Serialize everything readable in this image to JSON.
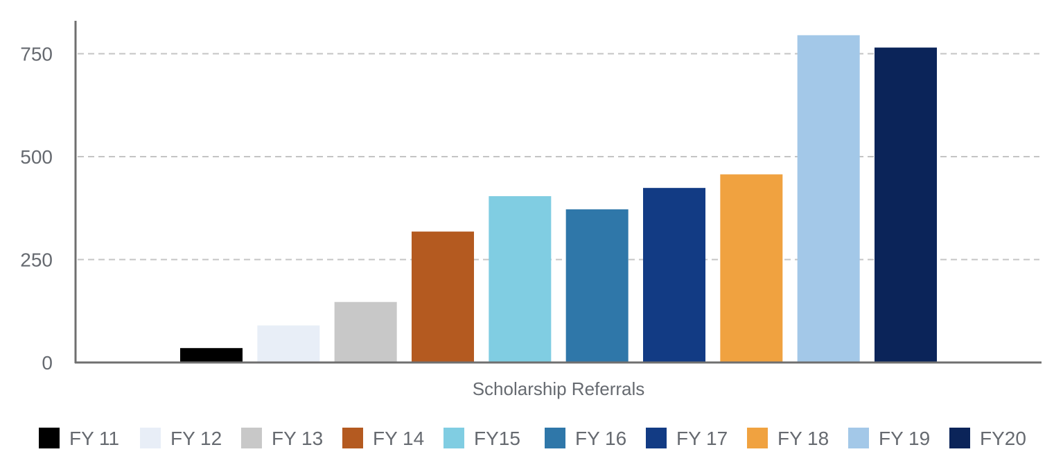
{
  "chart_data": {
    "type": "bar",
    "xlabel": "Scholarship Referrals",
    "ylabel": "",
    "ylim": [
      0,
      830
    ],
    "yticks": [
      0,
      250,
      500,
      750
    ],
    "grid": true,
    "legend_position": "bottom",
    "series": [
      {
        "name": "FY 11",
        "values": [
          35
        ],
        "color": "#000000"
      },
      {
        "name": "FY 12",
        "values": [
          90
        ],
        "color": "#e8eef7"
      },
      {
        "name": "FY 13",
        "values": [
          147
        ],
        "color": "#c8c8c8"
      },
      {
        "name": "FY 14",
        "values": [
          318
        ],
        "color": "#b45a20"
      },
      {
        "name": "FY15",
        "values": [
          404
        ],
        "color": "#80cde2"
      },
      {
        "name": "FY 16",
        "values": [
          372
        ],
        "color": "#2f77a9"
      },
      {
        "name": "FY 17",
        "values": [
          424
        ],
        "color": "#123b84"
      },
      {
        "name": "FY 18",
        "values": [
          457
        ],
        "color": "#f0a240"
      },
      {
        "name": "FY 19",
        "values": [
          795
        ],
        "color": "#a3c8e8"
      },
      {
        "name": "FY20",
        "values": [
          765
        ],
        "color": "#0b2459"
      }
    ]
  }
}
